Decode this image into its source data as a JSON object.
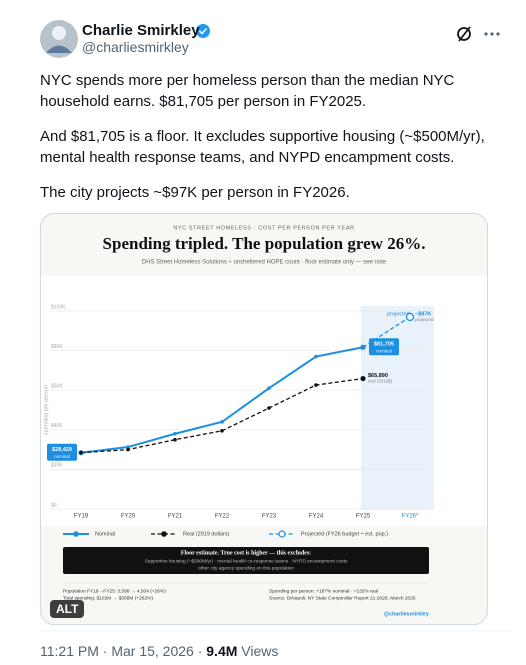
{
  "post": {
    "name": "Charlie Smirkley",
    "handle": "@charliesmirkley",
    "paragraphs": [
      "NYC spends more per homeless person than the median NYC household earns. $81,705 per person in FY2025.",
      "And $81,705 is a floor. It excludes supportive housing (~$500M/yr), mental health response teams, and NYPD encampment costs.",
      "The city projects ~$97K per person in FY2026."
    ],
    "alt_badge": "ALT",
    "timestamp": "11:21 PM · Mar 15, 2026 ·",
    "views": "9.4M",
    "views_label": "Views"
  },
  "chart_data": {
    "type": "line",
    "supertitle": "NYC STREET HOMELESS · COST PER PERSON PER YEAR",
    "title": "Spending tripled. The population grew 26%.",
    "subtitle": "DHS Street Homeless Solutions ÷ unsheltered HOPE count · floor estimate only — see note",
    "y_label": "spending per person",
    "region_label": "projected",
    "categories": [
      "FY19",
      "FY20",
      "FY21",
      "FY22",
      "FY23",
      "FY24",
      "FY25",
      "FY26*"
    ],
    "series": [
      {
        "name": "Nominal",
        "color": "#1d8fe0",
        "dashed": false,
        "marker": "dot",
        "label_box": true,
        "values": [
          28429,
          31300,
          38000,
          44000,
          61000,
          77000,
          81705,
          null
        ],
        "value_labels": [
          "$28,429",
          null,
          null,
          null,
          null,
          null,
          "$81,705",
          null
        ],
        "value_notes": [
          "nominal",
          null,
          null,
          null,
          null,
          null,
          "nominal",
          null
        ]
      },
      {
        "name": "Real (2019 dollars)",
        "color": "#111111",
        "dashed": true,
        "marker": "dot",
        "label_box": false,
        "values": [
          28429,
          30000,
          35000,
          39500,
          51000,
          62600,
          65890,
          null
        ],
        "value_labels": [
          null,
          null,
          null,
          null,
          null,
          null,
          "$65,890",
          null
        ],
        "value_notes": [
          null,
          null,
          null,
          null,
          null,
          null,
          "real (2019$)",
          null
        ]
      },
      {
        "name": "Projected (FY26 budget ÷ est. pop.)",
        "color": "#1d8fe0",
        "dashed": true,
        "marker": "hollow",
        "label_box": false,
        "values": [
          null,
          null,
          null,
          null,
          null,
          null,
          81705,
          97000
        ],
        "value_labels": [
          null,
          null,
          null,
          null,
          null,
          null,
          null,
          "~$97K"
        ],
        "value_notes": [
          null,
          null,
          null,
          null,
          null,
          null,
          null,
          "projected"
        ]
      }
    ],
    "ylim": [
      0,
      100000
    ],
    "yticks": [
      {
        "value": 0,
        "label": "$0"
      },
      {
        "value": 20000,
        "label": "$20K"
      },
      {
        "value": 40000,
        "label": "$40K"
      },
      {
        "value": 60000,
        "label": "$60K"
      },
      {
        "value": 80000,
        "label": "$80K"
      },
      {
        "value": 100000,
        "label": "$100K"
      }
    ],
    "grid": true,
    "note_title": "Floor estimate. True cost is higher — this excludes:",
    "note_lines": [
      "Supportive housing (~$500M/yr) · mental health co-response teams · NYPD encampment costs",
      "other city agency spending on this population"
    ],
    "footer_left": [
      "Population FY19→FY25: 3,588 → 4,504 (+26%)",
      "Total spending: $102M → $368M (+262%)"
    ],
    "footer_right": [
      "Spending per person: +187% nominal · +132% real",
      "Source: DiNapoli, NY State Comptroller Report 21-2026, March 2026"
    ],
    "credit": "@charliesmirkley"
  }
}
